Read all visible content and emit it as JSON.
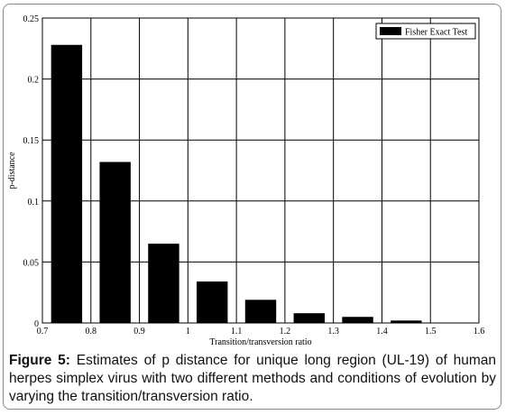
{
  "chart_data": {
    "type": "bar",
    "xlabel": "Transition/transversion ratio",
    "ylabel": "p-distance",
    "xlim": [
      0.7,
      1.6
    ],
    "ylim": [
      0,
      0.25
    ],
    "x_ticks": [
      "0.7",
      "0.8",
      "0.9",
      "1",
      "1.1",
      "1.2",
      "1.3",
      "1.4",
      "1.5",
      "1.6"
    ],
    "y_ticks": [
      "0",
      "0.05",
      "0.1",
      "0.15",
      "0.2",
      "0.25"
    ],
    "grid": true,
    "legend_position": "top-right",
    "series": [
      {
        "name": "Fisher Exact Test",
        "color": "#000000",
        "x": [
          0.75,
          0.85,
          0.95,
          1.05,
          1.15,
          1.25,
          1.35,
          1.45
        ],
        "values": [
          0.228,
          0.132,
          0.065,
          0.034,
          0.019,
          0.008,
          0.005,
          0.002
        ]
      }
    ]
  },
  "caption": {
    "label": "Figure 5:",
    "text": " Estimates of p distance for unique long region (UL-19) of human herpes simplex virus with two different methods and conditions of evolution by varying the transition/transversion ratio."
  }
}
